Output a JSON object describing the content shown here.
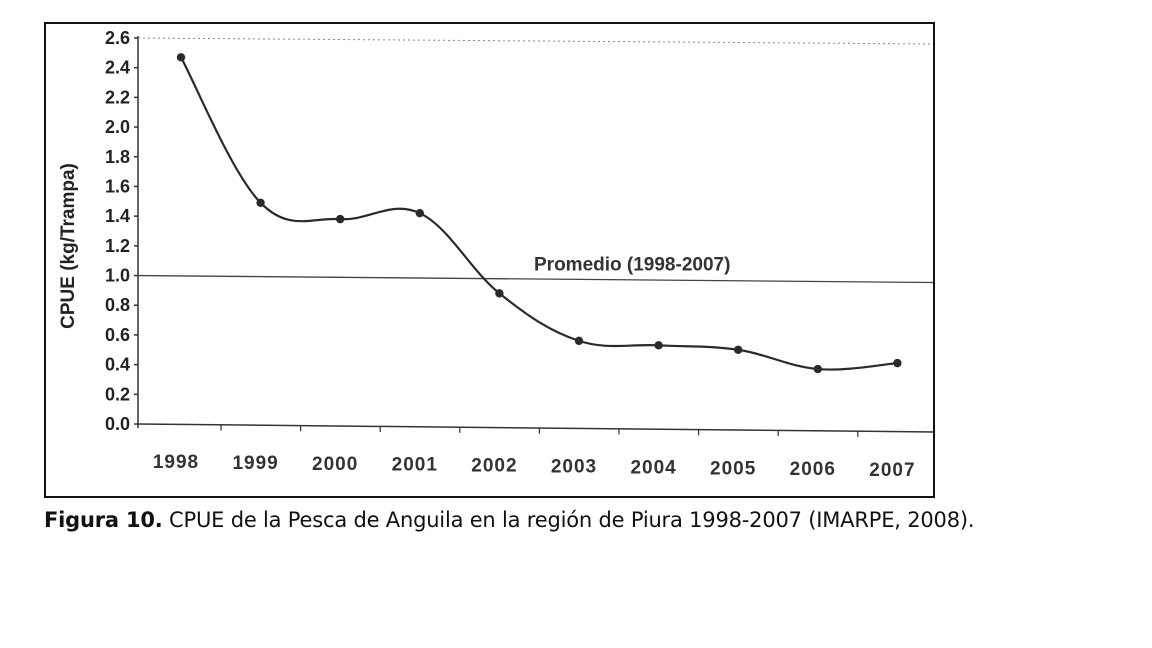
{
  "chart_data": {
    "type": "line",
    "ylabel": "CPUE (kg/Trampa)",
    "xlabel": "",
    "categories": [
      "1998",
      "1999",
      "2000",
      "2001",
      "2002",
      "2003",
      "2004",
      "2005",
      "2006",
      "2007"
    ],
    "series": [
      {
        "values": [
          2.47,
          1.49,
          1.38,
          1.42,
          0.88,
          0.56,
          0.53,
          0.5,
          0.37,
          0.41
        ]
      }
    ],
    "ylim": [
      0.0,
      2.6
    ],
    "yticks": [
      "0.0",
      "0.2",
      "0.4",
      "0.6",
      "0.8",
      "1.0",
      "1.2",
      "1.4",
      "1.6",
      "1.8",
      "2.0",
      "2.2",
      "2.4",
      "2.6"
    ],
    "reference_line": {
      "label": "Promedio (1998-2007)",
      "value": 1.0
    },
    "grid": false,
    "smooth": true,
    "colors": {
      "line": "#2a2a2a",
      "marker": "#2a2a2a",
      "reference": "#444444"
    }
  },
  "caption": {
    "label": "Figura 10.",
    "text": " CPUE de la Pesca de Anguila en la región de Piura 1998-2007 (IMARPE, 2008)."
  }
}
